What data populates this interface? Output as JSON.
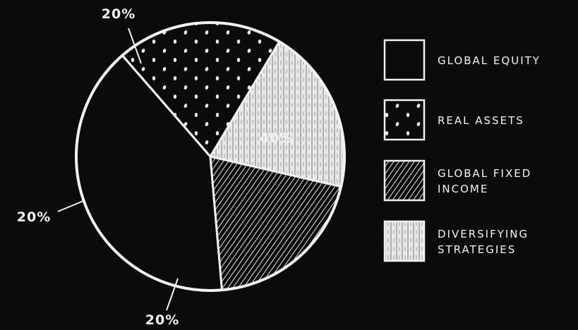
{
  "chart_data": {
    "type": "pie",
    "slices": [
      {
        "name": "GLOBAL EQUITY",
        "value": 40,
        "label": "40%",
        "pattern": "solid"
      },
      {
        "name": "REAL ASSETS",
        "value": 20,
        "label": "20%",
        "pattern": "dots"
      },
      {
        "name": "DIVERSIFYING STRATEGIES",
        "value": 20,
        "label": "20%",
        "pattern": "vertical-texture"
      },
      {
        "name": "GLOBAL FIXED INCOME",
        "value": 20,
        "label": "20%",
        "pattern": "diagonal-hatch"
      }
    ],
    "legend": {
      "placement": "right",
      "entries": [
        {
          "lines": [
            "GLOBAL EQUITY"
          ],
          "pattern": "solid"
        },
        {
          "lines": [
            "REAL ASSETS"
          ],
          "pattern": "dots"
        },
        {
          "lines": [
            "GLOBAL FIXED",
            "INCOME"
          ],
          "pattern": "diagonal-hatch"
        },
        {
          "lines": [
            "DIVERSIFYING",
            "STRATEGIES"
          ],
          "pattern": "vertical-texture"
        }
      ]
    },
    "colors": {
      "background": "#0b0b0b",
      "chalk": "#f2f2f2"
    }
  }
}
